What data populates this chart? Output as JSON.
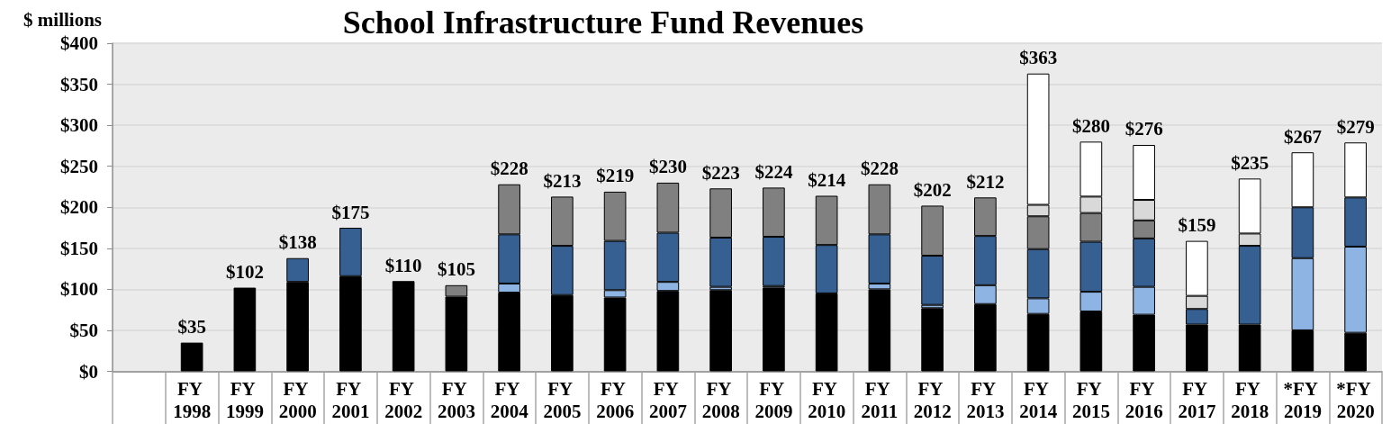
{
  "chart_data": {
    "type": "bar",
    "title": "School Infrastructure Fund Revenues",
    "ylabel": "$ millions",
    "categories": [
      null,
      "FY 1998",
      "FY 1999",
      "FY 2000",
      "FY 2001",
      "FY 2002",
      "FY 2003",
      "FY 2004",
      "FY 2005",
      "FY 2006",
      "FY 2007",
      "FY 2008",
      "FY 2009",
      "FY 2010",
      "FY 2011",
      "FY 2012",
      "FY 2013",
      "FY 2014",
      "FY 2015",
      "FY 2016",
      "FY 2017",
      "FY 2018",
      "*FY 2019",
      "*FY 2020"
    ],
    "series": [
      {
        "color": "#000000",
        "values": [
          null,
          35,
          102,
          109,
          116,
          110,
          91,
          96,
          93,
          90,
          98,
          99,
          102,
          95,
          100,
          77,
          82,
          70,
          73,
          69,
          57,
          57,
          50,
          47
        ]
      },
      {
        "color": "#8db4e2",
        "values": [
          null,
          null,
          null,
          null,
          null,
          null,
          null,
          11,
          null,
          9,
          11,
          4,
          2,
          null,
          7,
          4,
          23,
          19,
          24,
          34,
          null,
          null,
          88,
          105
        ]
      },
      {
        "color": "#366092",
        "values": [
          null,
          null,
          null,
          29,
          59,
          null,
          null,
          60,
          60,
          60,
          60,
          60,
          60,
          59,
          60,
          60,
          60,
          60,
          61,
          59,
          19,
          96,
          62,
          60
        ]
      },
      {
        "color": "#808080",
        "values": [
          null,
          null,
          null,
          null,
          null,
          null,
          14,
          61,
          60,
          60,
          61,
          60,
          60,
          60,
          61,
          61,
          47,
          40,
          35,
          22,
          null,
          null,
          null,
          null
        ]
      },
      {
        "color": "#d9d9d9",
        "values": [
          null,
          null,
          null,
          null,
          null,
          null,
          null,
          null,
          null,
          null,
          null,
          null,
          null,
          null,
          null,
          null,
          null,
          14,
          20,
          25,
          16,
          15,
          null,
          null
        ]
      },
      {
        "color": "#ffffff",
        "values": [
          null,
          null,
          null,
          null,
          null,
          null,
          null,
          null,
          null,
          null,
          null,
          null,
          null,
          null,
          null,
          null,
          null,
          160,
          67,
          67,
          67,
          67,
          67,
          67
        ]
      }
    ],
    "stacked": true,
    "totals": [
      null,
      "$35",
      "$102",
      "$138",
      "$175",
      "$110",
      "$105",
      "$228",
      "$213",
      "$219",
      "$230",
      "$223",
      "$224",
      "$214",
      "$228",
      "$202",
      "$212",
      "$363",
      "$280",
      "$276",
      "$159",
      "$235",
      "$267",
      "$279"
    ],
    "ylim": [
      0,
      400
    ],
    "yticks": [
      {
        "value": 0,
        "label": "$0"
      },
      {
        "value": 50,
        "label": "$50"
      },
      {
        "value": 100,
        "label": "$100"
      },
      {
        "value": 150,
        "label": "$150"
      },
      {
        "value": 200,
        "label": "$200"
      },
      {
        "value": 250,
        "label": "$250"
      },
      {
        "value": 300,
        "label": "$300"
      },
      {
        "value": 350,
        "label": "$350"
      },
      {
        "value": 400,
        "label": "$400"
      }
    ],
    "grid": "y"
  }
}
